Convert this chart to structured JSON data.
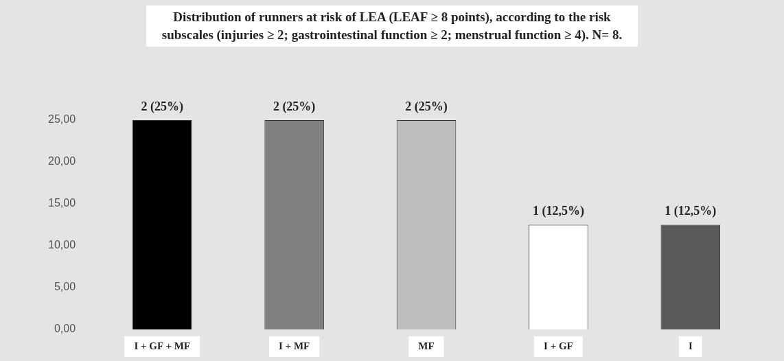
{
  "chart_data": {
    "type": "bar",
    "title": "Distribution of runners at risk of LEA (LEAF ≥ 8 points), according to the risk subscales (injuries ≥ 2; gastrointestinal function ≥ 2; menstrual function ≥ 4). N= 8.",
    "categories": [
      "I + GF + MF",
      "I + MF",
      "MF",
      "I + GF",
      "I"
    ],
    "values": [
      25,
      25,
      25,
      12.5,
      12.5
    ],
    "colors": [
      "#000000",
      "#7f7f7f",
      "#bdbdbd",
      "#ffffff",
      "#595959"
    ],
    "value_labels": [
      "2 (25%)",
      "2 (25%)",
      "2 (25%)",
      "1 (12,5%)",
      "1 (12,5%)"
    ],
    "ylim": [
      0,
      25
    ],
    "yticks": [
      {
        "value": 0,
        "label": "0,00"
      },
      {
        "value": 5,
        "label": "5,00"
      },
      {
        "value": 10,
        "label": "10,00"
      },
      {
        "value": 15,
        "label": "15,00"
      },
      {
        "value": 20,
        "label": "20,00"
      },
      {
        "value": 25,
        "label": "25,00"
      }
    ],
    "grid": false,
    "legend": false
  }
}
